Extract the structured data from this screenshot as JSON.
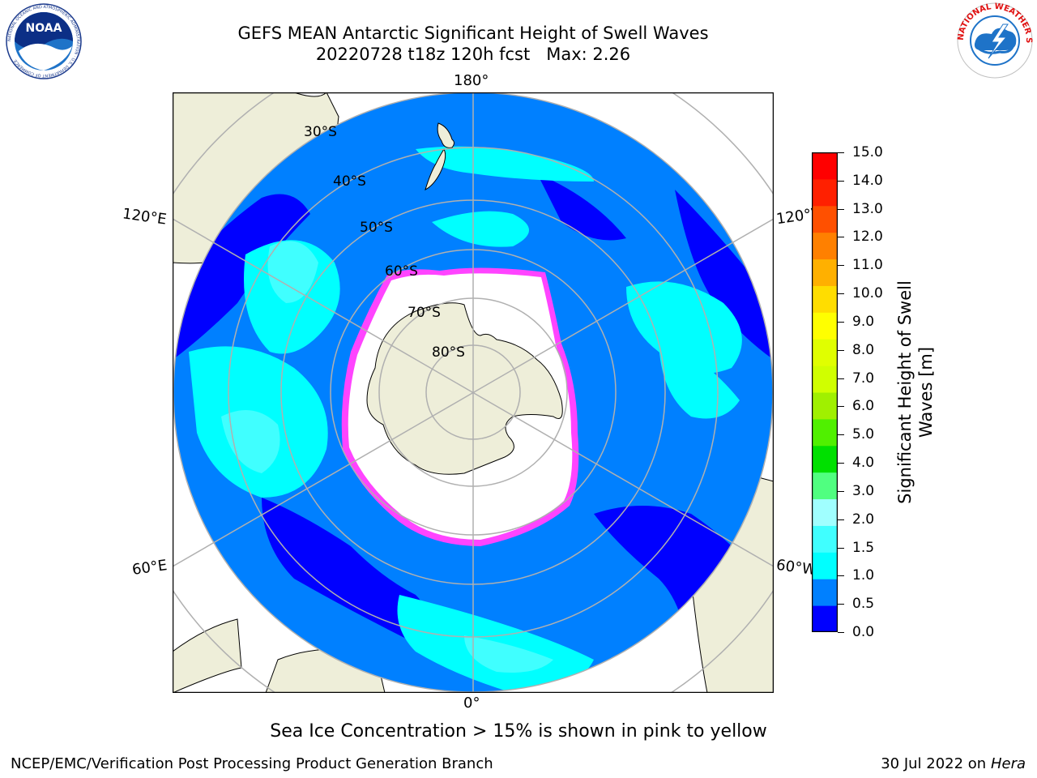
{
  "header": {
    "title_line1": "GEFS MEAN Antarctic Significant Height of Swell Waves",
    "title_line2": "20220728 t18z 120h fcst   Max: 2.26"
  },
  "logos": {
    "left": {
      "icon": "noaa-logo",
      "text": "NOAA",
      "ring_text": "NATIONAL OCEANIC AND ATMOSPHERIC ADMINISTRATION · U.S. DEPARTMENT OF COMMERCE"
    },
    "right": {
      "icon": "nws-logo",
      "ring_text": "NATIONAL WEATHER SERVICE"
    }
  },
  "map": {
    "projection": "south polar stereographic",
    "longitude_labels": {
      "top": "180°",
      "bottom": "0°",
      "upper_left": "120°E",
      "upper_right": "120°W",
      "lower_left": "60°E",
      "lower_right": "60°W"
    },
    "latitude_labels": [
      "30°S",
      "40°S",
      "50°S",
      "60°S",
      "70°S",
      "80°S"
    ],
    "colors": {
      "land": "#eeeed9",
      "ocean_low": "#0000ff",
      "ocean_mid": "#0080ff",
      "ocean_high": "#00ffff",
      "ocean_higher": "#40ffff",
      "ice_edge": "#ff33ff",
      "ice_inner": "#ffb020",
      "grid": "#b0b0b0"
    }
  },
  "colorbar": {
    "label_line1": "Significant Height of Swell",
    "label_line2": "Waves [m]",
    "ticks": [
      "15.0",
      "14.0",
      "13.0",
      "12.0",
      "11.0",
      "10.0",
      "9.0",
      "8.0",
      "7.0",
      "6.0",
      "5.0",
      "4.0",
      "3.0",
      "2.0",
      "1.5",
      "1.0",
      "0.5",
      "0.0"
    ],
    "colors": [
      "#0000ff",
      "#0080ff",
      "#00ffff",
      "#40ffff",
      "#a0ffff",
      "#50ff80",
      "#00e000",
      "#50f000",
      "#a0f000",
      "#d0ff00",
      "#e0ff00",
      "#ffff00",
      "#ffdd00",
      "#ffb000",
      "#ff8000",
      "#ff5000",
      "#ff2000",
      "#ff0000"
    ]
  },
  "note": "Sea Ice Concentration > 15% is shown in pink to yellow",
  "footer": {
    "left": "NCEP/EMC/Verification Post Processing Product Generation Branch",
    "right_prefix": "30 Jul 2022 on ",
    "right_machine": "Hera"
  }
}
